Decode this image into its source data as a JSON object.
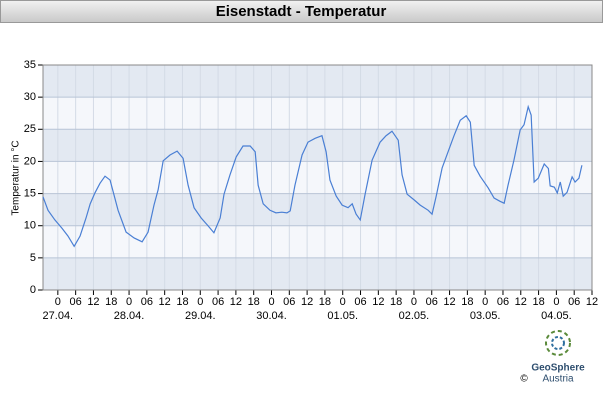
{
  "chart_data": {
    "type": "line",
    "title": "Eisenstadt - Temperatur",
    "y_label": "Temperatur in °C",
    "series": [
      {
        "name": "Temperatur",
        "color": "#4a7fd4",
        "x": [
          -5,
          -3.3,
          -1,
          1.4,
          3.4,
          5.5,
          7.5,
          9.5,
          10.9,
          12.5,
          14.2,
          15.9,
          17.6,
          20.3,
          23,
          25.7,
          28.4,
          30.4,
          32.4,
          33.8,
          35.5,
          37.8,
          40.2,
          42.2,
          43.9,
          45.9,
          48.3,
          50.6,
          52.6,
          54.7,
          56,
          58,
          60.1,
          62.4,
          64.8,
          66.5,
          67.5,
          69.2,
          71.5,
          73.5,
          75.5,
          77.2,
          78.3,
          79.9,
          82.3,
          84.3,
          86.7,
          89,
          90.4,
          91.7,
          93.8,
          95.8,
          97.8,
          99.2,
          100.5,
          101.9,
          103.5,
          105.9,
          108.6,
          110.6,
          112.6,
          114.7,
          116,
          117.7,
          120.1,
          122.1,
          124.8,
          126.1,
          127.5,
          129.5,
          131.5,
          133.5,
          135.6,
          137.6,
          139,
          140.3,
          142.3,
          145,
          147,
          149,
          150.4,
          151.7,
          153.7,
          155.8,
          157.1,
          158.5,
          159.5,
          160.5,
          161.9,
          163.9,
          165.3,
          165.9,
          167.3,
          168.3,
          169.3,
          170.3,
          171.6,
          173.3,
          174.3,
          175.6,
          176.6
        ],
        "values": [
          14.5,
          12.4,
          10.9,
          9.6,
          8.4,
          6.8,
          8.4,
          11.2,
          13.4,
          15.1,
          16.6,
          17.7,
          17.1,
          12.4,
          9,
          8.1,
          7.5,
          9,
          13.2,
          15.6,
          20.1,
          21,
          21.6,
          20.5,
          16.3,
          12.8,
          11.2,
          10,
          8.9,
          11.2,
          14.9,
          17.9,
          20.7,
          22.4,
          22.4,
          21.5,
          16.3,
          13.4,
          12.4,
          12,
          12.1,
          12,
          12.3,
          16.3,
          21,
          23,
          23.6,
          24,
          21.5,
          17.1,
          14.6,
          13.2,
          12.8,
          13.4,
          11.8,
          10.9,
          14.8,
          20.2,
          23,
          24,
          24.7,
          23.3,
          17.9,
          14.9,
          14,
          13.2,
          12.4,
          11.8,
          14.6,
          19,
          21.5,
          24,
          26.4,
          27.1,
          26.1,
          19.4,
          17.7,
          15.9,
          14.3,
          13.8,
          13.5,
          16.3,
          20.2,
          24.9,
          25.7,
          28.5,
          27.2,
          16.8,
          17.4,
          19.6,
          18.9,
          16.2,
          16,
          15.1,
          16.8,
          14.6,
          15.2,
          17.6,
          16.8,
          17.4,
          19.4
        ]
      }
    ],
    "xlim": [
      -5,
      180
    ],
    "xticks": [
      {
        "value": 0,
        "label": "0"
      },
      {
        "value": 6,
        "label": "06"
      },
      {
        "value": 12,
        "label": "12"
      },
      {
        "value": 18,
        "label": "18"
      },
      {
        "value": 24,
        "label": "0"
      },
      {
        "value": 30,
        "label": "06"
      },
      {
        "value": 36,
        "label": "12"
      },
      {
        "value": 42,
        "label": "18"
      },
      {
        "value": 48,
        "label": "0"
      },
      {
        "value": 54,
        "label": "06"
      },
      {
        "value": 60,
        "label": "12"
      },
      {
        "value": 66,
        "label": "18"
      },
      {
        "value": 72,
        "label": "0"
      },
      {
        "value": 78,
        "label": "06"
      },
      {
        "value": 84,
        "label": "12"
      },
      {
        "value": 90,
        "label": "18"
      },
      {
        "value": 96,
        "label": "0"
      },
      {
        "value": 102,
        "label": "06"
      },
      {
        "value": 108,
        "label": "12"
      },
      {
        "value": 114,
        "label": "18"
      },
      {
        "value": 120,
        "label": "0"
      },
      {
        "value": 126,
        "label": "06"
      },
      {
        "value": 132,
        "label": "12"
      },
      {
        "value": 138,
        "label": "18"
      },
      {
        "value": 144,
        "label": "0"
      },
      {
        "value": 150,
        "label": "06"
      },
      {
        "value": 156,
        "label": "12"
      },
      {
        "value": 162,
        "label": "18"
      },
      {
        "value": 168,
        "label": "0"
      },
      {
        "value": 174,
        "label": "06"
      },
      {
        "value": 180,
        "label": "12"
      }
    ],
    "date_labels": [
      {
        "value": 0,
        "label": "27.04."
      },
      {
        "value": 24,
        "label": "28.04."
      },
      {
        "value": 48,
        "label": "29.04."
      },
      {
        "value": 72,
        "label": "30.04."
      },
      {
        "value": 96,
        "label": "01.05."
      },
      {
        "value": 120,
        "label": "02.05."
      },
      {
        "value": 144,
        "label": "03.05."
      },
      {
        "value": 168,
        "label": "04.05."
      }
    ],
    "ylim": [
      0,
      35
    ],
    "yticks": [
      0,
      5,
      10,
      15,
      20,
      25,
      30,
      35
    ],
    "grid": true,
    "logo": {
      "name": "GeoSphere",
      "sub": "Austria",
      "copyright": "©"
    }
  }
}
